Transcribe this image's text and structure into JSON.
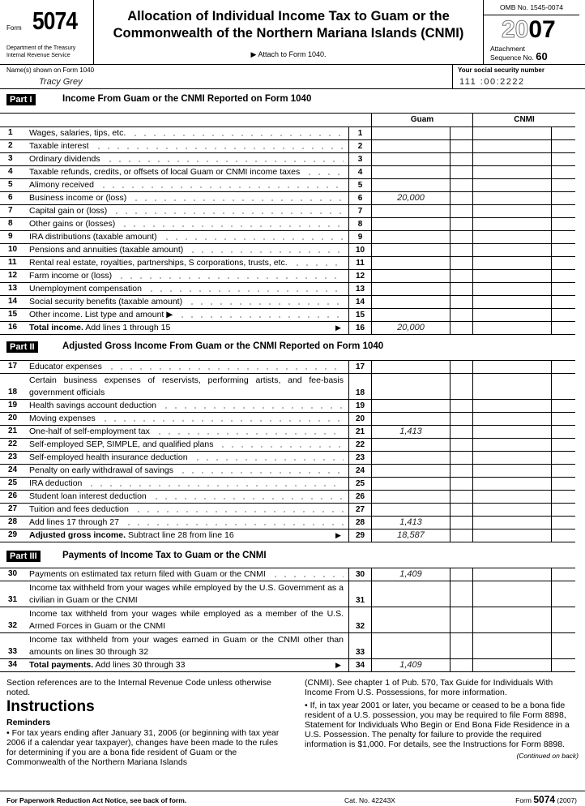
{
  "header": {
    "form_word": "Form",
    "form_number": "5074",
    "dept_line1": "Department of the Treasury",
    "dept_line2": "Internal Revenue Service",
    "title_line1": "Allocation of Individual Income Tax to Guam or the",
    "title_line2": "Commonwealth of the Northern Mariana Islands (CNMI)",
    "attach": "▶ Attach to Form 1040.",
    "omb": "OMB No. 1545-0074",
    "year_outline": "20",
    "year_bold": "07",
    "attachment_label": "Attachment",
    "sequence_label": "Sequence No.",
    "sequence_number": "60"
  },
  "taxpayer": {
    "name_label": "Name(s) shown on Form 1040",
    "name_value": "Tracy Grey",
    "ssn_label": "Your social security number",
    "ssn_value": "111 :00:2222"
  },
  "columns": {
    "guam": "Guam",
    "cnmi": "CNMI"
  },
  "parts": [
    {
      "tag": "Part I",
      "title": "Income From Guam or the CNMI Reported on Form 1040",
      "rows": [
        {
          "n": "1",
          "text": "Wages, salaries, tips, etc."
        },
        {
          "n": "2",
          "text": "Taxable interest"
        },
        {
          "n": "3",
          "text": "Ordinary dividends"
        },
        {
          "n": "4",
          "text": "Taxable refunds, credits, or offsets of local Guam or CNMI income taxes"
        },
        {
          "n": "5",
          "text": "Alimony received"
        },
        {
          "n": "6",
          "text": "Business income or (loss)",
          "guam": "20,000"
        },
        {
          "n": "7",
          "text": "Capital gain or (loss)"
        },
        {
          "n": "8",
          "text": "Other gains or (losses)"
        },
        {
          "n": "9",
          "text": "IRA distributions (taxable amount)"
        },
        {
          "n": "10",
          "text": "Pensions and annuities (taxable amount)"
        },
        {
          "n": "11",
          "text": "Rental real estate, royalties, partnerships, S corporations, trusts, etc."
        },
        {
          "n": "12",
          "text": "Farm income or (loss)"
        },
        {
          "n": "13",
          "text": "Unemployment compensation"
        },
        {
          "n": "14",
          "text": "Social security benefits (taxable amount)"
        },
        {
          "n": "15",
          "text": "Other income. List type and amount ▶"
        },
        {
          "n": "16",
          "bold": "Total income.",
          "text": " Add lines 1 through 15",
          "arrow": "▶",
          "guam": "20,000"
        }
      ]
    },
    {
      "tag": "Part II",
      "title": "Adjusted Gross Income From Guam or the CNMI Reported on Form 1040",
      "rows": [
        {
          "n": "17",
          "text": "Educator expenses"
        },
        {
          "n": "18",
          "text": "Certain business expenses of reservists, performing artists, and fee-basis government officials",
          "tall": true
        },
        {
          "n": "19",
          "text": "Health savings account deduction"
        },
        {
          "n": "20",
          "text": "Moving expenses"
        },
        {
          "n": "21",
          "text": "One-half of self-employment tax",
          "guam": "1,413"
        },
        {
          "n": "22",
          "text": "Self-employed SEP, SIMPLE, and qualified plans"
        },
        {
          "n": "23",
          "text": "Self-employed health insurance deduction"
        },
        {
          "n": "24",
          "text": "Penalty on early withdrawal of savings"
        },
        {
          "n": "25",
          "text": "IRA deduction"
        },
        {
          "n": "26",
          "text": "Student loan interest deduction"
        },
        {
          "n": "27",
          "text": "Tuition and fees deduction"
        },
        {
          "n": "28",
          "text": "Add lines 17 through 27",
          "guam": "1,413"
        },
        {
          "n": "29",
          "bold": "Adjusted gross income.",
          "text": " Subtract line 28 from line 16",
          "arrow": "▶",
          "guam": "18,587"
        }
      ]
    },
    {
      "tag": "Part III",
      "title": "Payments of Income Tax to Guam or the CNMI",
      "rows": [
        {
          "n": "30",
          "text": "Payments on estimated tax return filed with Guam or the CNMI",
          "guam": "1,409"
        },
        {
          "n": "31",
          "text": "Income tax withheld from your wages while employed by the U.S. Government as a civilian in Guam or the CNMI",
          "tall": true
        },
        {
          "n": "32",
          "text": "Income tax withheld from your wages while employed as a member of the U.S. Armed Forces in Guam or the CNMI",
          "tall": true
        },
        {
          "n": "33",
          "text": "Income tax withheld from your wages earned in Guam or the CNMI other than amounts on lines 30 through 32",
          "tall": true
        },
        {
          "n": "34",
          "bold": "Total payments.",
          "text": " Add lines 30 through 33",
          "arrow": "▶",
          "guam": "1,409"
        }
      ]
    }
  ],
  "instructions": {
    "intro": "Section references are to the Internal Revenue Code unless otherwise noted.",
    "heading": "Instructions",
    "reminders": "Reminders",
    "bullet1": "• For tax years ending after January 31, 2006 (or beginning with tax year 2006 if a calendar year taxpayer), changes have been made to the rules for determining if you are a bona fide resident of Guam or the Commonwealth of the Northern Mariana Islands",
    "bullet1_cont": "(CNMI). See chapter 1 of Pub. 570, Tax Guide for Individuals With Income From U.S. Possessions, for more information.",
    "bullet2": "• If, in tax year 2001 or later, you became or ceased to be a bona fide resident of a U.S. possession, you may be required to file Form 8898, Statement for Individuals Who Begin or End Bona Fide Residence in a U.S. Possession. The penalty for failure to provide the required information is $1,000. For details, see the Instructions for Form 8898.",
    "continued": "(Continued on back)"
  },
  "footer": {
    "notice": "For Paperwork Reduction Act Notice, see back of form.",
    "cat": "Cat. No. 42243X",
    "form_word": "Form",
    "form_number": "5074",
    "year": "(2007)"
  }
}
